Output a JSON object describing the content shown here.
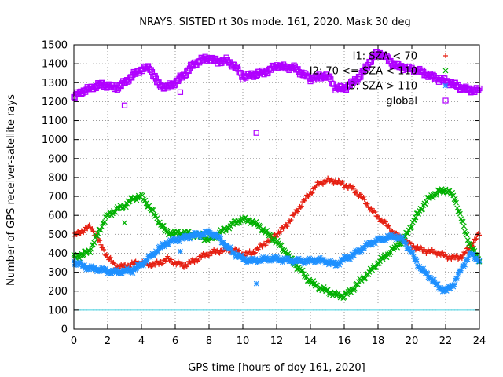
{
  "chart_data": {
    "type": "scatter",
    "title": "NRAYS. SISTED rt 30s mode. 161, 2020. Mask 30 deg",
    "xlabel": "GPS time [hours of doy 161, 2020]",
    "ylabel": "Number of GPS receiver-satellite rays",
    "xlim": [
      0,
      24
    ],
    "ylim": [
      0,
      1500
    ],
    "xticks": [
      "0",
      "2",
      "4",
      "6",
      "8",
      "10",
      "12",
      "14",
      "16",
      "18",
      "20",
      "22",
      "24"
    ],
    "yticks": [
      "0",
      "100",
      "200",
      "300",
      "400",
      "500",
      "600",
      "700",
      "800",
      "900",
      "1000",
      "1100",
      "1200",
      "1300",
      "1400",
      "1500"
    ],
    "grid": true,
    "legend_position": "top-right",
    "threshold_line": {
      "y": 100,
      "color": "#40d0e0"
    },
    "series": [
      {
        "name": "I1: SZA < 70",
        "color": "#e51e10",
        "marker": "+",
        "x": [
          0,
          0.5,
          1,
          1.5,
          2,
          2.5,
          3,
          3.5,
          4,
          4.5,
          5,
          5.5,
          6,
          6.5,
          7,
          7.5,
          8,
          8.5,
          9,
          9.5,
          10,
          10.5,
          11,
          11.5,
          12,
          12.5,
          13,
          13.5,
          14,
          14.5,
          15,
          15.5,
          16,
          16.5,
          17,
          17.5,
          18,
          18.5,
          19,
          19.5,
          20,
          20.5,
          21,
          21.5,
          22,
          22.5,
          23,
          23.5,
          24
        ],
        "y": [
          490,
          520,
          540,
          460,
          380,
          330,
          330,
          345,
          350,
          340,
          345,
          370,
          350,
          335,
          355,
          380,
          400,
          410,
          420,
          415,
          395,
          400,
          430,
          465,
          500,
          540,
          600,
          660,
          720,
          770,
          785,
          780,
          760,
          740,
          700,
          640,
          590,
          550,
          500,
          470,
          440,
          420,
          410,
          405,
          385,
          375,
          385,
          440,
          500
        ]
      },
      {
        "name": "I2: 70 <= SZA < 110",
        "color": "#00b000",
        "marker": "x",
        "x": [
          0,
          0.5,
          1,
          1.5,
          2,
          2.5,
          3,
          3.5,
          4,
          4.5,
          5,
          5.5,
          6,
          6.5,
          7,
          7.5,
          8,
          8.5,
          9,
          9.5,
          10,
          10.5,
          11,
          11.5,
          12,
          12.5,
          13,
          13.5,
          14,
          14.5,
          15,
          15.5,
          16,
          16.5,
          17,
          17.5,
          18,
          18.5,
          19,
          19.5,
          20,
          20.5,
          21,
          21.5,
          22,
          22.5,
          23,
          23.5,
          24
        ],
        "y": [
          380,
          390,
          420,
          520,
          600,
          630,
          650,
          690,
          700,
          640,
          570,
          510,
          505,
          505,
          500,
          490,
          470,
          500,
          530,
          560,
          580,
          570,
          540,
          500,
          460,
          410,
          350,
          300,
          250,
          220,
          200,
          180,
          175,
          210,
          260,
          300,
          350,
          390,
          430,
          470,
          550,
          630,
          690,
          720,
          735,
          700,
          560,
          430,
          370
        ]
      },
      {
        "name": "I3: SZA > 110",
        "color": "#1e90ff",
        "marker": "*",
        "x": [
          0,
          0.5,
          1,
          1.5,
          2,
          2.5,
          3,
          3.5,
          4,
          4.5,
          5,
          5.5,
          6,
          6.5,
          7,
          7.5,
          8,
          8.5,
          9,
          9.5,
          10,
          10.5,
          11,
          11.5,
          12,
          12.5,
          13,
          13.5,
          14,
          14.5,
          15,
          15.5,
          16,
          16.5,
          17,
          17.5,
          18,
          18.5,
          19,
          19.5,
          20,
          20.5,
          21,
          21.5,
          22,
          22.5,
          23,
          23.5,
          24
        ],
        "y": [
          355,
          335,
          320,
          315,
          305,
          300,
          305,
          310,
          340,
          380,
          420,
          455,
          470,
          480,
          495,
          500,
          510,
          490,
          440,
          400,
          370,
          360,
          365,
          370,
          370,
          365,
          360,
          360,
          360,
          365,
          355,
          340,
          370,
          390,
          420,
          450,
          470,
          480,
          490,
          470,
          400,
          320,
          280,
          230,
          200,
          240,
          330,
          400,
          360
        ]
      },
      {
        "name": "global",
        "color": "#b000ff",
        "marker": "square",
        "x": [
          0,
          0.5,
          1,
          1.5,
          2,
          2.5,
          3,
          3.5,
          4,
          4.5,
          5,
          5.5,
          6,
          6.5,
          7,
          7.5,
          8,
          8.5,
          9,
          9.5,
          10,
          10.5,
          11,
          11.5,
          12,
          12.5,
          13,
          13.5,
          14,
          14.5,
          15,
          15.5,
          16,
          16.5,
          17,
          17.5,
          18,
          18.5,
          19,
          19.5,
          20,
          20.5,
          21,
          21.5,
          22,
          22.5,
          23,
          23.5,
          24
        ],
        "y": [
          1225,
          1255,
          1270,
          1290,
          1285,
          1270,
          1300,
          1340,
          1370,
          1380,
          1290,
          1275,
          1300,
          1340,
          1390,
          1420,
          1430,
          1410,
          1420,
          1390,
          1330,
          1340,
          1350,
          1360,
          1390,
          1380,
          1380,
          1350,
          1320,
          1330,
          1340,
          1270,
          1270,
          1300,
          1340,
          1410,
          1460,
          1430,
          1390,
          1380,
          1370,
          1360,
          1340,
          1320,
          1310,
          1290,
          1270,
          1260,
          1260
        ]
      }
    ],
    "outliers": [
      {
        "series": "global",
        "x": 3,
        "y": 1180
      },
      {
        "series": "global",
        "x": 10.8,
        "y": 1035
      },
      {
        "series": "global",
        "x": 6.3,
        "y": 1250
      },
      {
        "series": "I2: 70 <= SZA < 110",
        "x": 3,
        "y": 560
      },
      {
        "series": "I3: SZA > 110",
        "x": 10.8,
        "y": 240
      },
      {
        "series": "I3: SZA > 110",
        "x": 6.3,
        "y": 410
      }
    ]
  }
}
